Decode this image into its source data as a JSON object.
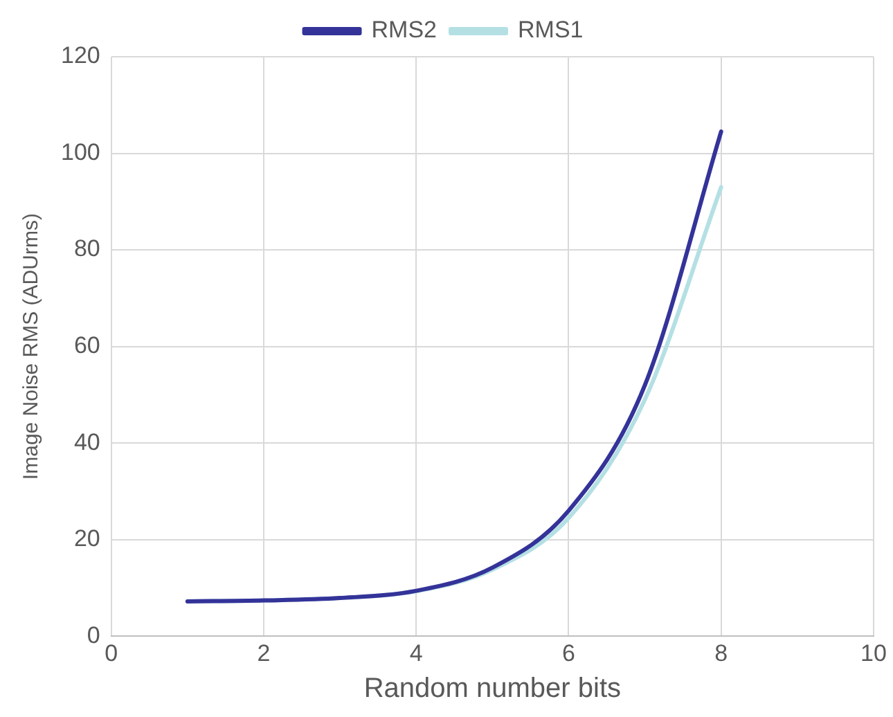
{
  "chart_data": {
    "type": "line",
    "xlabel": "Random number bits",
    "ylabel": "Image Noise RMS (ADUrms)",
    "x": [
      1,
      2,
      3,
      4,
      5,
      6,
      7,
      8
    ],
    "series": [
      {
        "name": "RMS1",
        "color": "#b4e0e4",
        "values": [
          7.2,
          7.4,
          7.9,
          9.3,
          13.8,
          24.5,
          49,
          93
        ]
      },
      {
        "name": "RMS2",
        "color": "#343399",
        "values": [
          7.2,
          7.4,
          7.9,
          9.4,
          14.2,
          26,
          52,
          104.5
        ]
      }
    ],
    "xlim": [
      0,
      10
    ],
    "xticks": [
      0,
      2,
      4,
      6,
      8,
      10
    ],
    "ylim": [
      0,
      120
    ],
    "yticks": [
      0,
      20,
      40,
      60,
      80,
      100,
      120
    ],
    "grid": true,
    "legend": "top",
    "marker": "none",
    "line_style": "solid"
  }
}
